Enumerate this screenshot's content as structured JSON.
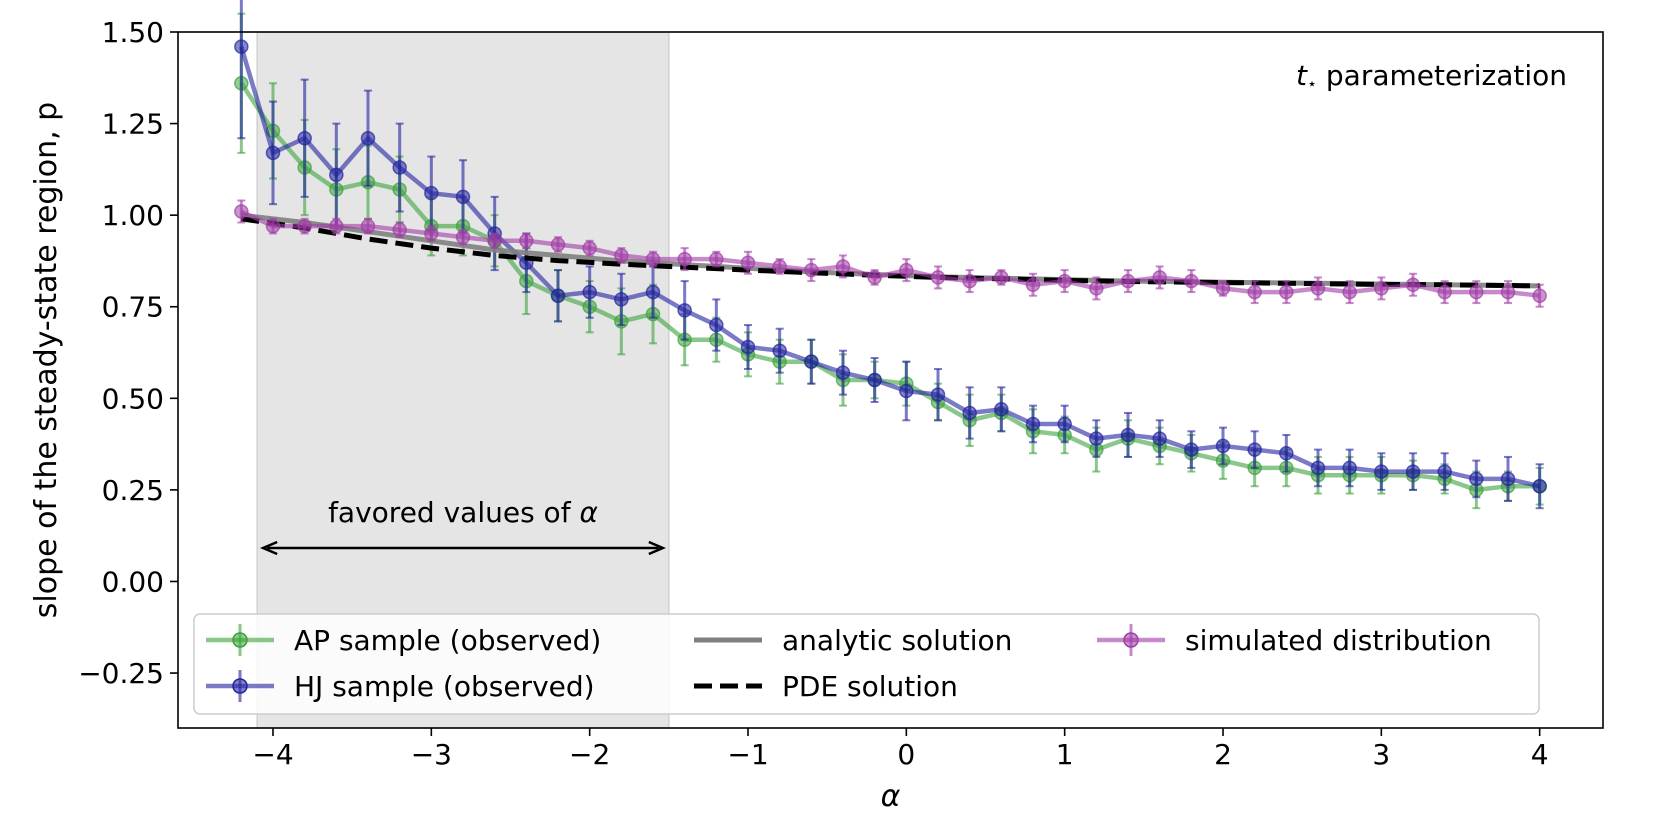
{
  "chart_data": {
    "type": "line",
    "xlabel": "α",
    "ylabel": "slope of the steady-state region, p",
    "xlim": [
      -4.6,
      4.4
    ],
    "ylim": [
      -0.4,
      1.5
    ],
    "xticks": [
      -4,
      -3,
      -2,
      -1,
      0,
      1,
      2,
      3,
      4
    ],
    "xtick_labels": [
      "−4",
      "−3",
      "−2",
      "−1",
      "0",
      "1",
      "2",
      "3",
      "4"
    ],
    "yticks": [
      -0.25,
      0.0,
      0.25,
      0.5,
      0.75,
      1.0,
      1.25,
      1.5
    ],
    "ytick_labels": [
      "−0.25",
      "0.00",
      "0.25",
      "0.50",
      "0.75",
      "1.00",
      "1.25",
      "1.50"
    ],
    "annotation_param": {
      "symbol": "t",
      "subscript": "⋆",
      "text": " parameterization"
    },
    "shaded_region": {
      "x0": -4.1,
      "x1": -1.5,
      "label_text": "favored values of ",
      "label_symbol": "α"
    },
    "x": [
      -4.2,
      -4.0,
      -3.8,
      -3.6,
      -3.4,
      -3.2,
      -3.0,
      -2.8,
      -2.6,
      -2.4,
      -2.2,
      -2.0,
      -1.8,
      -1.6,
      -1.4,
      -1.2,
      -1.0,
      -0.8,
      -0.6,
      -0.4,
      -0.2,
      0.0,
      0.2,
      0.4,
      0.6,
      0.8,
      1.0,
      1.2,
      1.4,
      1.6,
      1.8,
      2.0,
      2.2,
      2.4,
      2.6,
      2.8,
      3.0,
      3.2,
      3.4,
      3.6,
      3.8,
      4.0
    ],
    "series": [
      {
        "name": "AP sample (observed)",
        "kind": "errorbar",
        "color": "#3ca23c",
        "values": [
          1.36,
          1.23,
          1.13,
          1.07,
          1.09,
          1.07,
          0.97,
          0.97,
          0.93,
          0.82,
          0.78,
          0.75,
          0.71,
          0.73,
          0.66,
          0.66,
          0.62,
          0.6,
          0.6,
          0.55,
          0.55,
          0.54,
          0.49,
          0.44,
          0.46,
          0.41,
          0.4,
          0.36,
          0.39,
          0.37,
          0.35,
          0.33,
          0.31,
          0.31,
          0.29,
          0.29,
          0.29,
          0.29,
          0.28,
          0.25,
          0.26,
          0.26
        ],
        "errors": [
          0.19,
          0.13,
          0.13,
          0.11,
          0.1,
          0.09,
          0.08,
          0.08,
          0.07,
          0.09,
          0.07,
          0.07,
          0.09,
          0.08,
          0.07,
          0.06,
          0.06,
          0.06,
          0.06,
          0.07,
          0.05,
          0.06,
          0.05,
          0.07,
          0.05,
          0.06,
          0.05,
          0.06,
          0.05,
          0.05,
          0.05,
          0.05,
          0.05,
          0.05,
          0.05,
          0.05,
          0.05,
          0.04,
          0.04,
          0.05,
          0.04,
          0.05
        ]
      },
      {
        "name": "HJ sample (observed)",
        "kind": "errorbar",
        "color": "#2222a0",
        "values": [
          1.46,
          1.17,
          1.21,
          1.11,
          1.21,
          1.13,
          1.06,
          1.05,
          0.95,
          0.87,
          0.78,
          0.79,
          0.77,
          0.79,
          0.74,
          0.7,
          0.64,
          0.63,
          0.6,
          0.57,
          0.55,
          0.52,
          0.51,
          0.46,
          0.47,
          0.43,
          0.43,
          0.39,
          0.4,
          0.39,
          0.36,
          0.37,
          0.36,
          0.35,
          0.31,
          0.31,
          0.3,
          0.3,
          0.3,
          0.28,
          0.28,
          0.26
        ],
        "errors": [
          0.25,
          0.14,
          0.16,
          0.14,
          0.13,
          0.12,
          0.1,
          0.1,
          0.1,
          0.08,
          0.07,
          0.07,
          0.07,
          0.07,
          0.08,
          0.07,
          0.06,
          0.06,
          0.06,
          0.06,
          0.06,
          0.08,
          0.07,
          0.07,
          0.06,
          0.05,
          0.05,
          0.05,
          0.06,
          0.05,
          0.05,
          0.05,
          0.05,
          0.05,
          0.05,
          0.05,
          0.05,
          0.05,
          0.05,
          0.05,
          0.06,
          0.06
        ]
      },
      {
        "name": "analytic solution",
        "kind": "line",
        "color": "#808080",
        "x": [
          -4.2,
          -3.8,
          -3.4,
          -3.0,
          -2.6,
          -2.2,
          -1.8,
          -1.4,
          -1.0,
          -0.6,
          -0.2,
          0.2,
          0.6,
          1.0,
          1.4,
          1.8,
          2.2,
          2.6,
          3.0,
          3.4,
          3.8,
          4.0
        ],
        "values": [
          1.0,
          0.98,
          0.955,
          0.93,
          0.905,
          0.89,
          0.875,
          0.865,
          0.855,
          0.845,
          0.838,
          0.832,
          0.828,
          0.824,
          0.82,
          0.818,
          0.816,
          0.814,
          0.812,
          0.81,
          0.808,
          0.807
        ]
      },
      {
        "name": "PDE solution",
        "kind": "dashed",
        "color": "#000000",
        "x": [
          -4.2,
          -3.8,
          -3.4,
          -3.0,
          -2.6,
          -2.2,
          -1.8,
          -1.4,
          -1.0,
          -0.6,
          -0.2,
          0.2,
          0.6,
          1.0,
          1.4,
          1.8,
          2.2,
          2.6,
          3.0,
          3.4,
          3.8,
          4.0
        ],
        "values": [
          0.99,
          0.965,
          0.935,
          0.91,
          0.89,
          0.876,
          0.866,
          0.858,
          0.85,
          0.843,
          0.836,
          0.83,
          0.826,
          0.822,
          0.819,
          0.817,
          0.815,
          0.813,
          0.811,
          0.81,
          0.808,
          0.807
        ]
      },
      {
        "name": "simulated distribution",
        "kind": "errorbar",
        "color": "#a03ca6",
        "values": [
          1.01,
          0.97,
          0.97,
          0.97,
          0.97,
          0.96,
          0.95,
          0.94,
          0.93,
          0.93,
          0.92,
          0.91,
          0.89,
          0.88,
          0.88,
          0.88,
          0.87,
          0.86,
          0.85,
          0.86,
          0.83,
          0.85,
          0.83,
          0.82,
          0.83,
          0.81,
          0.82,
          0.8,
          0.82,
          0.83,
          0.82,
          0.8,
          0.79,
          0.79,
          0.8,
          0.79,
          0.8,
          0.81,
          0.79,
          0.79,
          0.79,
          0.78
        ],
        "errors": [
          0.03,
          0.02,
          0.02,
          0.02,
          0.02,
          0.02,
          0.02,
          0.02,
          0.02,
          0.02,
          0.02,
          0.02,
          0.02,
          0.02,
          0.03,
          0.02,
          0.03,
          0.02,
          0.03,
          0.03,
          0.02,
          0.03,
          0.03,
          0.03,
          0.02,
          0.03,
          0.03,
          0.03,
          0.03,
          0.03,
          0.03,
          0.02,
          0.03,
          0.03,
          0.03,
          0.03,
          0.03,
          0.03,
          0.03,
          0.03,
          0.03,
          0.03
        ]
      }
    ],
    "legend": {
      "placement": "lower-left",
      "columns": [
        [
          "AP sample (observed)",
          "HJ sample (observed)"
        ],
        [
          "analytic solution",
          "PDE solution"
        ],
        [
          "simulated distribution"
        ]
      ]
    }
  }
}
